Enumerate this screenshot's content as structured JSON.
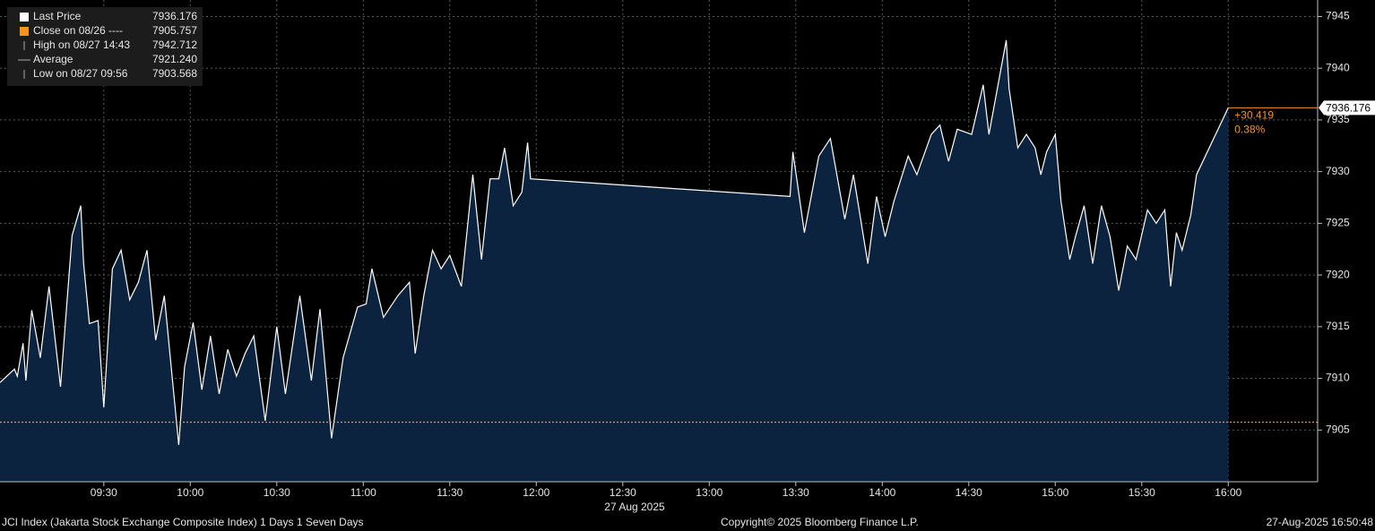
{
  "chart_data": {
    "type": "area",
    "legend": [
      {
        "label": "Last Price",
        "value": 7936.176
      },
      {
        "label": "Close on 08/26 ----",
        "value": 7905.757
      },
      {
        "label": "High on 08/27 14:43",
        "value": 7942.712
      },
      {
        "label": "Average",
        "value": 7921.24,
        "value_label": "7921.240"
      },
      {
        "label": "Low on 08/27 09:56",
        "value": 7903.568
      }
    ],
    "change": {
      "value": 30.419,
      "label": "+30.419"
    },
    "change_pct": {
      "value": 0.38,
      "label": "0.38%"
    },
    "x": [
      "08:54",
      "08:59",
      "09:00",
      "09:02",
      "09:03",
      "09:05",
      "09:08",
      "09:11",
      "09:15",
      "09:19",
      "09:22",
      "09:23",
      "09:25",
      "09:28",
      "09:30",
      "09:33",
      "09:36",
      "09:39",
      "09:42",
      "09:45",
      "09:48",
      "09:51",
      "09:56",
      "09:58",
      "10:01",
      "10:04",
      "10:07",
      "10:10",
      "10:13",
      "10:16",
      "10:19",
      "10:22",
      "10:26",
      "10:30",
      "10:33",
      "10:38",
      "10:42",
      "10:45",
      "10:49",
      "10:53",
      "10:58",
      "11:01",
      "11:03",
      "11:07",
      "11:12",
      "11:16",
      "11:18",
      "11:21",
      "11:24",
      "11:27",
      "11:30",
      "11:34",
      "11:38",
      "11:41",
      "11:44",
      "11:47",
      "11:49",
      "11:52",
      "11:55",
      "11:57",
      "11:58",
      "13:28",
      "13:29",
      "13:33",
      "13:38",
      "13:42",
      "13:47",
      "13:50",
      "13:55",
      "13:58",
      "14:01",
      "14:04",
      "14:09",
      "14:12",
      "14:17",
      "14:20",
      "14:23",
      "14:26",
      "14:31",
      "14:35",
      "14:37",
      "14:43",
      "14:44",
      "14:47",
      "14:50",
      "14:53",
      "14:55",
      "14:57",
      "15:00",
      "15:02",
      "15:05",
      "15:07",
      "15:10",
      "15:13",
      "15:16",
      "15:19",
      "15:22",
      "15:25",
      "15:28",
      "15:32",
      "15:35",
      "15:38",
      "15:40",
      "15:42",
      "15:44",
      "15:47",
      "15:49",
      "16:00"
    ],
    "series": [
      {
        "name": "Last Price",
        "color": "#ffffff",
        "fill": "#0c2340",
        "values": [
          7909.6,
          7910.9,
          7910.2,
          7913.4,
          7909.8,
          7916.6,
          7912.0,
          7918.9,
          7909.2,
          7923.8,
          7926.7,
          7921.1,
          7915.3,
          7915.6,
          7907.2,
          7920.6,
          7922.4,
          7917.6,
          7919.3,
          7922.4,
          7913.7,
          7918.0,
          7903.568,
          7911.1,
          7915.4,
          7908.9,
          7914.1,
          7908.5,
          7912.8,
          7910.2,
          7912.4,
          7914.1,
          7905.9,
          7915.0,
          7908.5,
          7918.0,
          7909.8,
          7916.7,
          7904.2,
          7912.0,
          7916.9,
          7917.2,
          7920.6,
          7915.9,
          7918.0,
          7919.3,
          7912.4,
          7918.0,
          7922.4,
          7920.6,
          7921.9,
          7918.9,
          7929.7,
          7921.5,
          7929.3,
          7929.3,
          7932.3,
          7926.7,
          7928.0,
          7932.8,
          7929.3,
          7927.6,
          7931.9,
          7924.1,
          7931.5,
          7933.2,
          7925.4,
          7929.7,
          7921.1,
          7927.6,
          7923.7,
          7927.1,
          7931.5,
          7929.7,
          7933.6,
          7934.5,
          7931.0,
          7934.1,
          7933.6,
          7938.4,
          7933.6,
          7942.712,
          7938.0,
          7932.3,
          7933.6,
          7932.3,
          7929.7,
          7931.9,
          7933.6,
          7927.1,
          7921.5,
          7923.7,
          7926.7,
          7921.1,
          7926.7,
          7923.7,
          7918.5,
          7922.8,
          7921.5,
          7926.3,
          7925.0,
          7926.3,
          7918.9,
          7924.1,
          7922.4,
          7925.8,
          7929.7,
          7936.176
        ]
      }
    ],
    "close_color": "#f7941d",
    "xlim": [
      "08:54",
      "16:31"
    ],
    "xticks": [
      "09:30",
      "10:00",
      "10:30",
      "11:00",
      "11:30",
      "12:00",
      "12:30",
      "13:00",
      "13:30",
      "14:00",
      "14:30",
      "15:00",
      "15:30",
      "16:00"
    ],
    "date_label": "27 Aug 2025",
    "ylim": [
      7900,
      7946.6
    ],
    "yticks": [
      7905,
      7910,
      7915,
      7920,
      7925,
      7930,
      7935,
      7940,
      7945
    ],
    "grid": true,
    "footer": {
      "left": "JCI Index (Jakarta Stock Exchange Composite Index) 1 Days 1 Seven Days",
      "center": "Copyright© 2025 Bloomberg Finance L.P.",
      "right": "27-Aug-2025 16:50:48"
    }
  }
}
